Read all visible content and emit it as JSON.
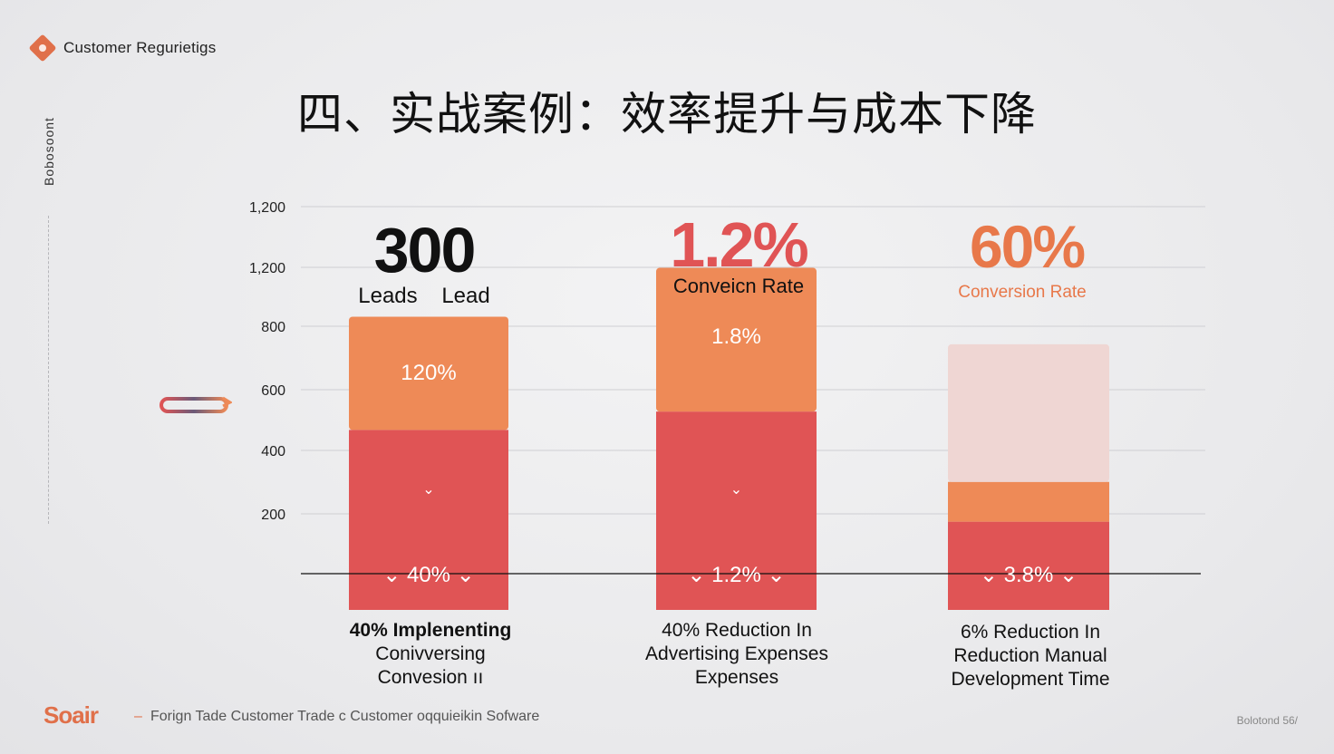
{
  "brand": {
    "name": "Customer Regurietigs"
  },
  "side_label": "Bobosoont",
  "title": "四、实战案例：效率提升与成本下降",
  "stats": [
    {
      "number": "300",
      "label": "Leads    Lead",
      "color": "#111111"
    },
    {
      "number": "1.2%",
      "label": "Conveicn Rate",
      "color": "#e05455"
    },
    {
      "number": "60%",
      "label": "Conversion Rate",
      "color": "#e8784a"
    }
  ],
  "bar_labels": [
    {
      "top": "120%",
      "mid": "⌄",
      "bottom": "⌄ 40% ⌄"
    },
    {
      "top": "1.8%",
      "mid": "⌄",
      "bottom": "⌄ 1.2% ⌄"
    },
    {
      "top": "",
      "mid": "",
      "bottom": "⌄ 3.8% ⌄"
    }
  ],
  "captions": [
    {
      "line1": "40% Implenenting",
      "line2": "Conivversing",
      "line3": "Convesion ıı"
    },
    {
      "line1": "40% Reduction In",
      "line2": "Advertising Expenses",
      "line3": "Expenses"
    },
    {
      "line1": "6% Reduction In",
      "line2": "Reduction Manual",
      "line3": "Development Time"
    }
  ],
  "chart_data": {
    "type": "bar",
    "title": "",
    "xlabel": "",
    "ylabel": "",
    "y_tick_labels": [
      "1,200",
      "1,200",
      "800",
      "600",
      "400",
      "200"
    ],
    "ylim": [
      0,
      1300
    ],
    "grid": true,
    "categories": [
      "Leads",
      "Conversion Rate",
      "Conversion Rate"
    ],
    "series": [
      {
        "values": [
          470,
          530,
          170
        ],
        "color": "#e05455"
      },
      {
        "values": [
          370,
          470,
          130
        ],
        "color": "#ee8a57"
      },
      {
        "values": [
          0,
          0,
          450
        ],
        "color": "#efd6d3"
      }
    ]
  },
  "footer": {
    "logo": "Soair",
    "dash": "–",
    "text": "Forign Tade Customer Trade c Customer oqquieikin Sofware",
    "right": "Bolotond 56/"
  },
  "colors": {
    "accent": "#e0704a",
    "red": "#e05455",
    "orange": "#ee8a57",
    "ghost": "#efd6d3"
  },
  "icons": {
    "brand": "diamond-logo-icon",
    "side": "double-arrow-pill-icon"
  }
}
